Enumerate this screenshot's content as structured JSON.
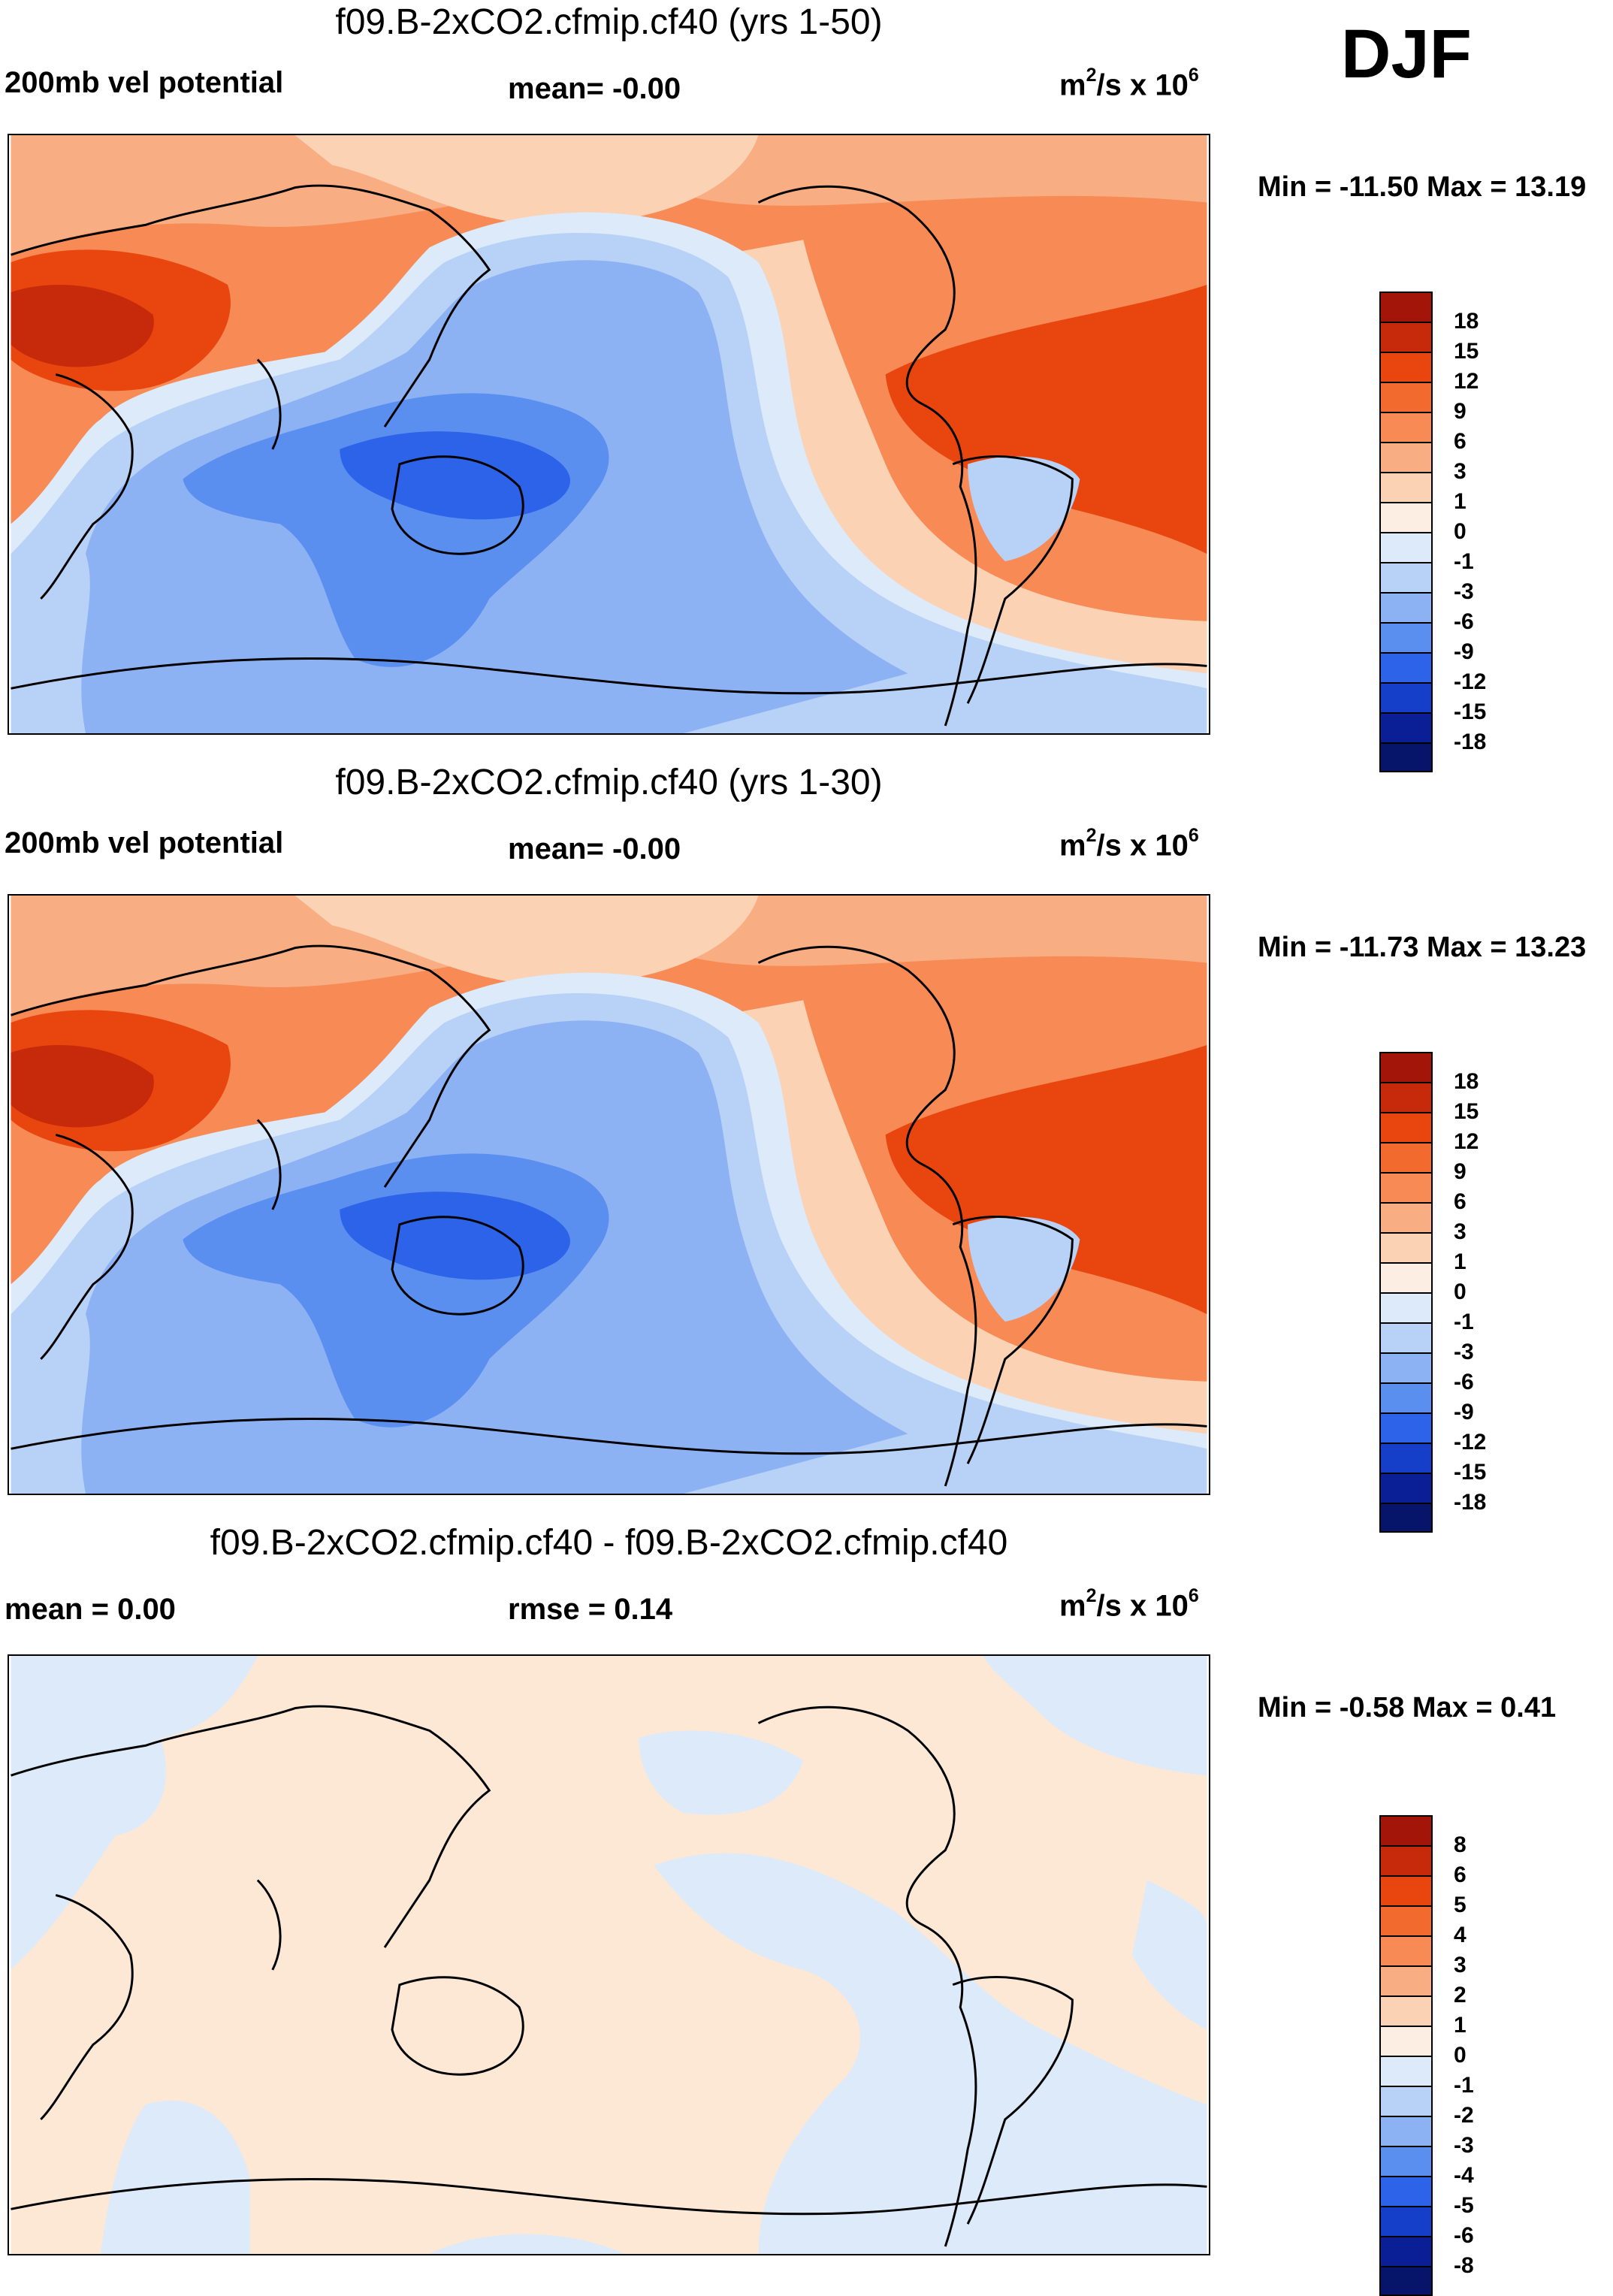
{
  "season": "DJF",
  "panels": [
    {
      "title": "f09.B-2xCO2.cfmip.cf40 (yrs 1-50)",
      "left_label": "200mb vel potential",
      "center_label": "mean=  -0.00",
      "units_base": "m",
      "units_sup1": "2",
      "units_mid": "/s x 10",
      "units_sup2": "6",
      "minmax": "Min = -11.50 Max =  13.19",
      "colorbar": {
        "labels": [
          "18",
          "15",
          "12",
          "9",
          "6",
          "3",
          "1",
          "0",
          "-1",
          "-3",
          "-6",
          "-9",
          "-12",
          "-15",
          "-18"
        ],
        "colors": [
          "#a31508",
          "#c72a0b",
          "#e9450f",
          "#f36a2e",
          "#f78a55",
          "#f9ad83",
          "#fcd2b5",
          "#fdeee4",
          "#dceaf9",
          "#b8d2f7",
          "#8db2f4",
          "#5a8ff0",
          "#2d63e8",
          "#153fc9",
          "#0a1f96",
          "#06146a"
        ]
      },
      "map_base_color": "#f78a55"
    },
    {
      "title": "f09.B-2xCO2.cfmip.cf40 (yrs 1-30)",
      "left_label": "200mb vel potential",
      "center_label": "mean=  -0.00",
      "units_base": "m",
      "units_sup1": "2",
      "units_mid": "/s x 10",
      "units_sup2": "6",
      "minmax": "Min = -11.73 Max =  13.23",
      "colorbar": {
        "labels": [
          "18",
          "15",
          "12",
          "9",
          "6",
          "3",
          "1",
          "0",
          "-1",
          "-3",
          "-6",
          "-9",
          "-12",
          "-15",
          "-18"
        ],
        "colors": [
          "#a31508",
          "#c72a0b",
          "#e9450f",
          "#f36a2e",
          "#f78a55",
          "#f9ad83",
          "#fcd2b5",
          "#fdeee4",
          "#dceaf9",
          "#b8d2f7",
          "#8db2f4",
          "#5a8ff0",
          "#2d63e8",
          "#153fc9",
          "#0a1f96",
          "#06146a"
        ]
      },
      "map_base_color": "#f78a55"
    },
    {
      "title": "f09.B-2xCO2.cfmip.cf40 - f09.B-2xCO2.cfmip.cf40",
      "left_label": "mean =   0.00",
      "center_label": "rmse =   0.14",
      "units_base": "m",
      "units_sup1": "2",
      "units_mid": "/s x 10",
      "units_sup2": "6",
      "minmax": "Min =  -0.58 Max =   0.41",
      "colorbar": {
        "labels": [
          "8",
          "6",
          "5",
          "4",
          "3",
          "2",
          "1",
          "0",
          "-1",
          "-2",
          "-3",
          "-4",
          "-5",
          "-6",
          "-8"
        ],
        "colors": [
          "#a31508",
          "#c72a0b",
          "#e9450f",
          "#f36a2e",
          "#f78a55",
          "#f9ad83",
          "#fcd2b5",
          "#fdeee4",
          "#dceaf9",
          "#b8d2f7",
          "#8db2f4",
          "#5a8ff0",
          "#2d63e8",
          "#153fc9",
          "#0a1f96",
          "#06146a"
        ]
      },
      "map_base_color": "#fde8d6"
    }
  ]
}
